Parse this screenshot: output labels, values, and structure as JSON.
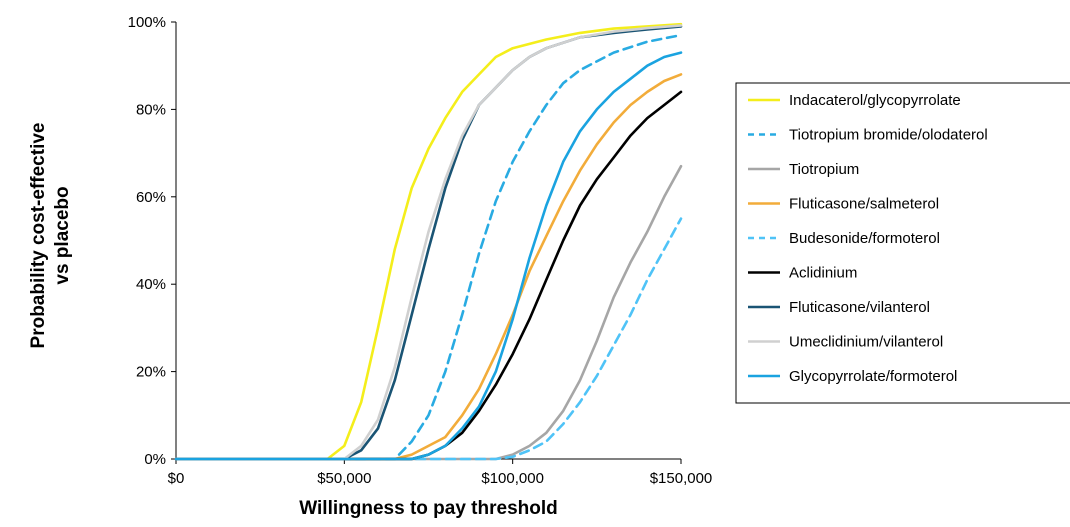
{
  "chart_data": {
    "type": "line",
    "title": "",
    "xlabel": "Willingness to pay threshold",
    "ylabel": "Probability cost-effective vs placebo",
    "xlim": [
      0,
      150000
    ],
    "ylim": [
      0,
      100
    ],
    "x_ticks": [
      {
        "value": 0,
        "label": "$0"
      },
      {
        "value": 50000,
        "label": "$50,000"
      },
      {
        "value": 100000,
        "label": "$100,000"
      },
      {
        "value": 150000,
        "label": "$150,000"
      }
    ],
    "y_ticks": [
      {
        "value": 0,
        "label": "0%"
      },
      {
        "value": 20,
        "label": "20%"
      },
      {
        "value": 40,
        "label": "40%"
      },
      {
        "value": 60,
        "label": "60%"
      },
      {
        "value": 80,
        "label": "80%"
      },
      {
        "value": 100,
        "label": "100%"
      }
    ],
    "grid": false,
    "legend_position": "right",
    "series": [
      {
        "name": "Indacaterol/glycopyrrolate",
        "color": "#f4ee1b",
        "dash": "solid",
        "x": [
          0,
          45000,
          50000,
          55000,
          60000,
          65000,
          70000,
          75000,
          80000,
          85000,
          90000,
          95000,
          100000,
          110000,
          120000,
          130000,
          140000,
          150000
        ],
        "y": [
          0,
          0,
          3,
          13,
          30,
          48,
          62,
          71,
          78,
          84,
          88,
          92,
          94,
          96,
          97.5,
          98.5,
          99,
          99.5
        ]
      },
      {
        "name": "Tiotropium bromide/olodaterol",
        "color": "#29abe2",
        "dash": "dashed",
        "x": [
          0,
          65000,
          70000,
          75000,
          80000,
          85000,
          90000,
          95000,
          100000,
          105000,
          110000,
          115000,
          120000,
          130000,
          140000,
          150000
        ],
        "y": [
          0,
          0,
          4,
          10,
          20,
          33,
          47,
          59,
          68,
          75,
          81,
          86,
          89,
          93,
          95.5,
          97
        ]
      },
      {
        "name": "Tiotropium",
        "color": "#a6a6a6",
        "dash": "solid",
        "x": [
          0,
          95000,
          100000,
          105000,
          110000,
          115000,
          120000,
          125000,
          130000,
          135000,
          140000,
          145000,
          150000
        ],
        "y": [
          0,
          0,
          1,
          3,
          6,
          11,
          18,
          27,
          37,
          45,
          52,
          60,
          67
        ]
      },
      {
        "name": "Fluticasone/salmeterol",
        "color": "#f2ac3a",
        "dash": "solid",
        "x": [
          0,
          65000,
          70000,
          75000,
          80000,
          85000,
          90000,
          95000,
          100000,
          105000,
          110000,
          115000,
          120000,
          125000,
          130000,
          135000,
          140000,
          145000,
          150000
        ],
        "y": [
          0,
          0,
          1,
          3,
          5,
          10,
          16,
          24,
          33,
          43,
          51,
          59,
          66,
          72,
          77,
          81,
          84,
          86.5,
          88
        ]
      },
      {
        "name": "Budesonide/formoterol",
        "color": "#4fc3f7",
        "dash": "dashed",
        "x": [
          0,
          95000,
          100000,
          105000,
          110000,
          115000,
          120000,
          125000,
          130000,
          135000,
          140000,
          145000,
          150000
        ],
        "y": [
          0,
          0,
          0.5,
          2,
          4,
          8,
          13,
          19,
          26,
          33,
          41,
          48,
          55
        ]
      },
      {
        "name": "Aclidinium",
        "color": "#000000",
        "dash": "solid",
        "x": [
          0,
          70000,
          75000,
          80000,
          85000,
          90000,
          95000,
          100000,
          105000,
          110000,
          115000,
          120000,
          125000,
          130000,
          135000,
          140000,
          145000,
          150000
        ],
        "y": [
          0,
          0,
          1,
          3,
          6,
          11,
          17,
          24,
          32,
          41,
          50,
          58,
          64,
          69,
          74,
          78,
          81,
          84
        ]
      },
      {
        "name": "Fluticasone/vilanterol",
        "color": "#1a5474",
        "dash": "solid",
        "x": [
          0,
          50000,
          55000,
          60000,
          65000,
          70000,
          75000,
          80000,
          85000,
          90000,
          95000,
          100000,
          105000,
          110000,
          120000,
          130000,
          140000,
          150000
        ],
        "y": [
          0,
          0,
          2,
          7,
          18,
          33,
          48,
          62,
          73,
          81,
          85,
          89,
          92,
          94,
          96.5,
          97.5,
          98.3,
          99
        ]
      },
      {
        "name": "Umeclidinium/vilanterol",
        "color": "#d0d0d0",
        "dash": "solid",
        "x": [
          0,
          50000,
          55000,
          60000,
          65000,
          70000,
          75000,
          80000,
          85000,
          90000,
          95000,
          100000,
          105000,
          110000,
          120000,
          130000,
          140000,
          150000
        ],
        "y": [
          0,
          0,
          3,
          9,
          21,
          37,
          52,
          64,
          74,
          81,
          85,
          89,
          92,
          94,
          96.5,
          97.8,
          98.6,
          99.2
        ]
      },
      {
        "name": "Glycopyrrolate/formoterol",
        "color": "#1aa3e0",
        "dash": "solid",
        "x": [
          0,
          70000,
          75000,
          80000,
          85000,
          90000,
          95000,
          100000,
          105000,
          110000,
          115000,
          120000,
          125000,
          130000,
          135000,
          140000,
          145000,
          150000
        ],
        "y": [
          0,
          0,
          1,
          3,
          7,
          12,
          20,
          32,
          46,
          58,
          68,
          75,
          80,
          84,
          87,
          90,
          92,
          93
        ]
      }
    ]
  }
}
